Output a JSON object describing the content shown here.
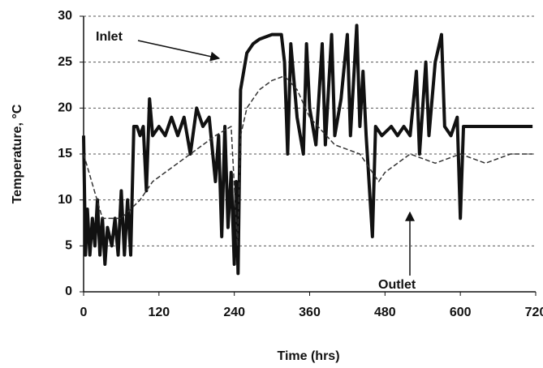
{
  "chart_data": {
    "type": "line",
    "xlabel": "Time (hrs)",
    "ylabel": "Temperature, °C",
    "xlim": [
      0,
      720
    ],
    "xticks": [
      0,
      120,
      240,
      360,
      480,
      600,
      720
    ],
    "ylim": [
      0,
      30
    ],
    "yticks": [
      0,
      5,
      10,
      15,
      20,
      25,
      30
    ],
    "grid": true,
    "annotations": [
      "Inlet",
      "Outlet"
    ],
    "series": [
      {
        "name": "Inlet",
        "color": "#111111",
        "x": [
          0,
          3,
          6,
          10,
          14,
          18,
          22,
          26,
          30,
          34,
          38,
          45,
          50,
          55,
          60,
          65,
          70,
          75,
          80,
          85,
          90,
          95,
          100,
          105,
          110,
          120,
          130,
          140,
          150,
          160,
          170,
          180,
          190,
          200,
          210,
          215,
          220,
          225,
          230,
          235,
          240,
          243,
          246,
          250,
          255,
          260,
          270,
          280,
          300,
          315,
          320,
          325,
          330,
          340,
          350,
          355,
          360,
          370,
          380,
          385,
          395,
          400,
          410,
          420,
          425,
          435,
          440,
          445,
          450,
          460,
          465,
          475,
          490,
          500,
          510,
          520,
          530,
          535,
          545,
          550,
          560,
          570,
          575,
          585,
          595,
          600,
          605,
          620,
          640,
          660,
          680,
          700,
          715
        ],
        "values": [
          17,
          4,
          9,
          4,
          8,
          5,
          10,
          4,
          8,
          3,
          7,
          5,
          8,
          4,
          11,
          4,
          10,
          4,
          18,
          18,
          17,
          18,
          11,
          21,
          17,
          18,
          17,
          19,
          17,
          19,
          15,
          20,
          18,
          19,
          12,
          17,
          6,
          18,
          7,
          13,
          3,
          12,
          2,
          22,
          24,
          26,
          27,
          27.5,
          28,
          28,
          25,
          15,
          27,
          19,
          15,
          27,
          20,
          16,
          27,
          16,
          28,
          17,
          21,
          28,
          17,
          29,
          18,
          24,
          17,
          6,
          18,
          17,
          18,
          17,
          18,
          17,
          24,
          15,
          25,
          17,
          25,
          28,
          18,
          17,
          19,
          8,
          18,
          18,
          18,
          18,
          18,
          18,
          18
        ]
      },
      {
        "name": "Outlet",
        "color": "#333333",
        "x": [
          0,
          30,
          60,
          90,
          110,
          130,
          150,
          170,
          190,
          210,
          235,
          245,
          250,
          260,
          280,
          300,
          320,
          340,
          360,
          400,
          440,
          470,
          480,
          500,
          520,
          560,
          600,
          640,
          680,
          715
        ],
        "values": [
          15,
          8,
          8,
          10,
          12,
          13,
          14,
          15,
          16,
          17,
          18,
          5,
          17,
          20,
          22,
          23,
          23.5,
          22,
          19,
          16,
          15,
          12,
          13,
          14,
          15,
          14,
          15,
          14,
          15,
          15
        ]
      }
    ]
  }
}
